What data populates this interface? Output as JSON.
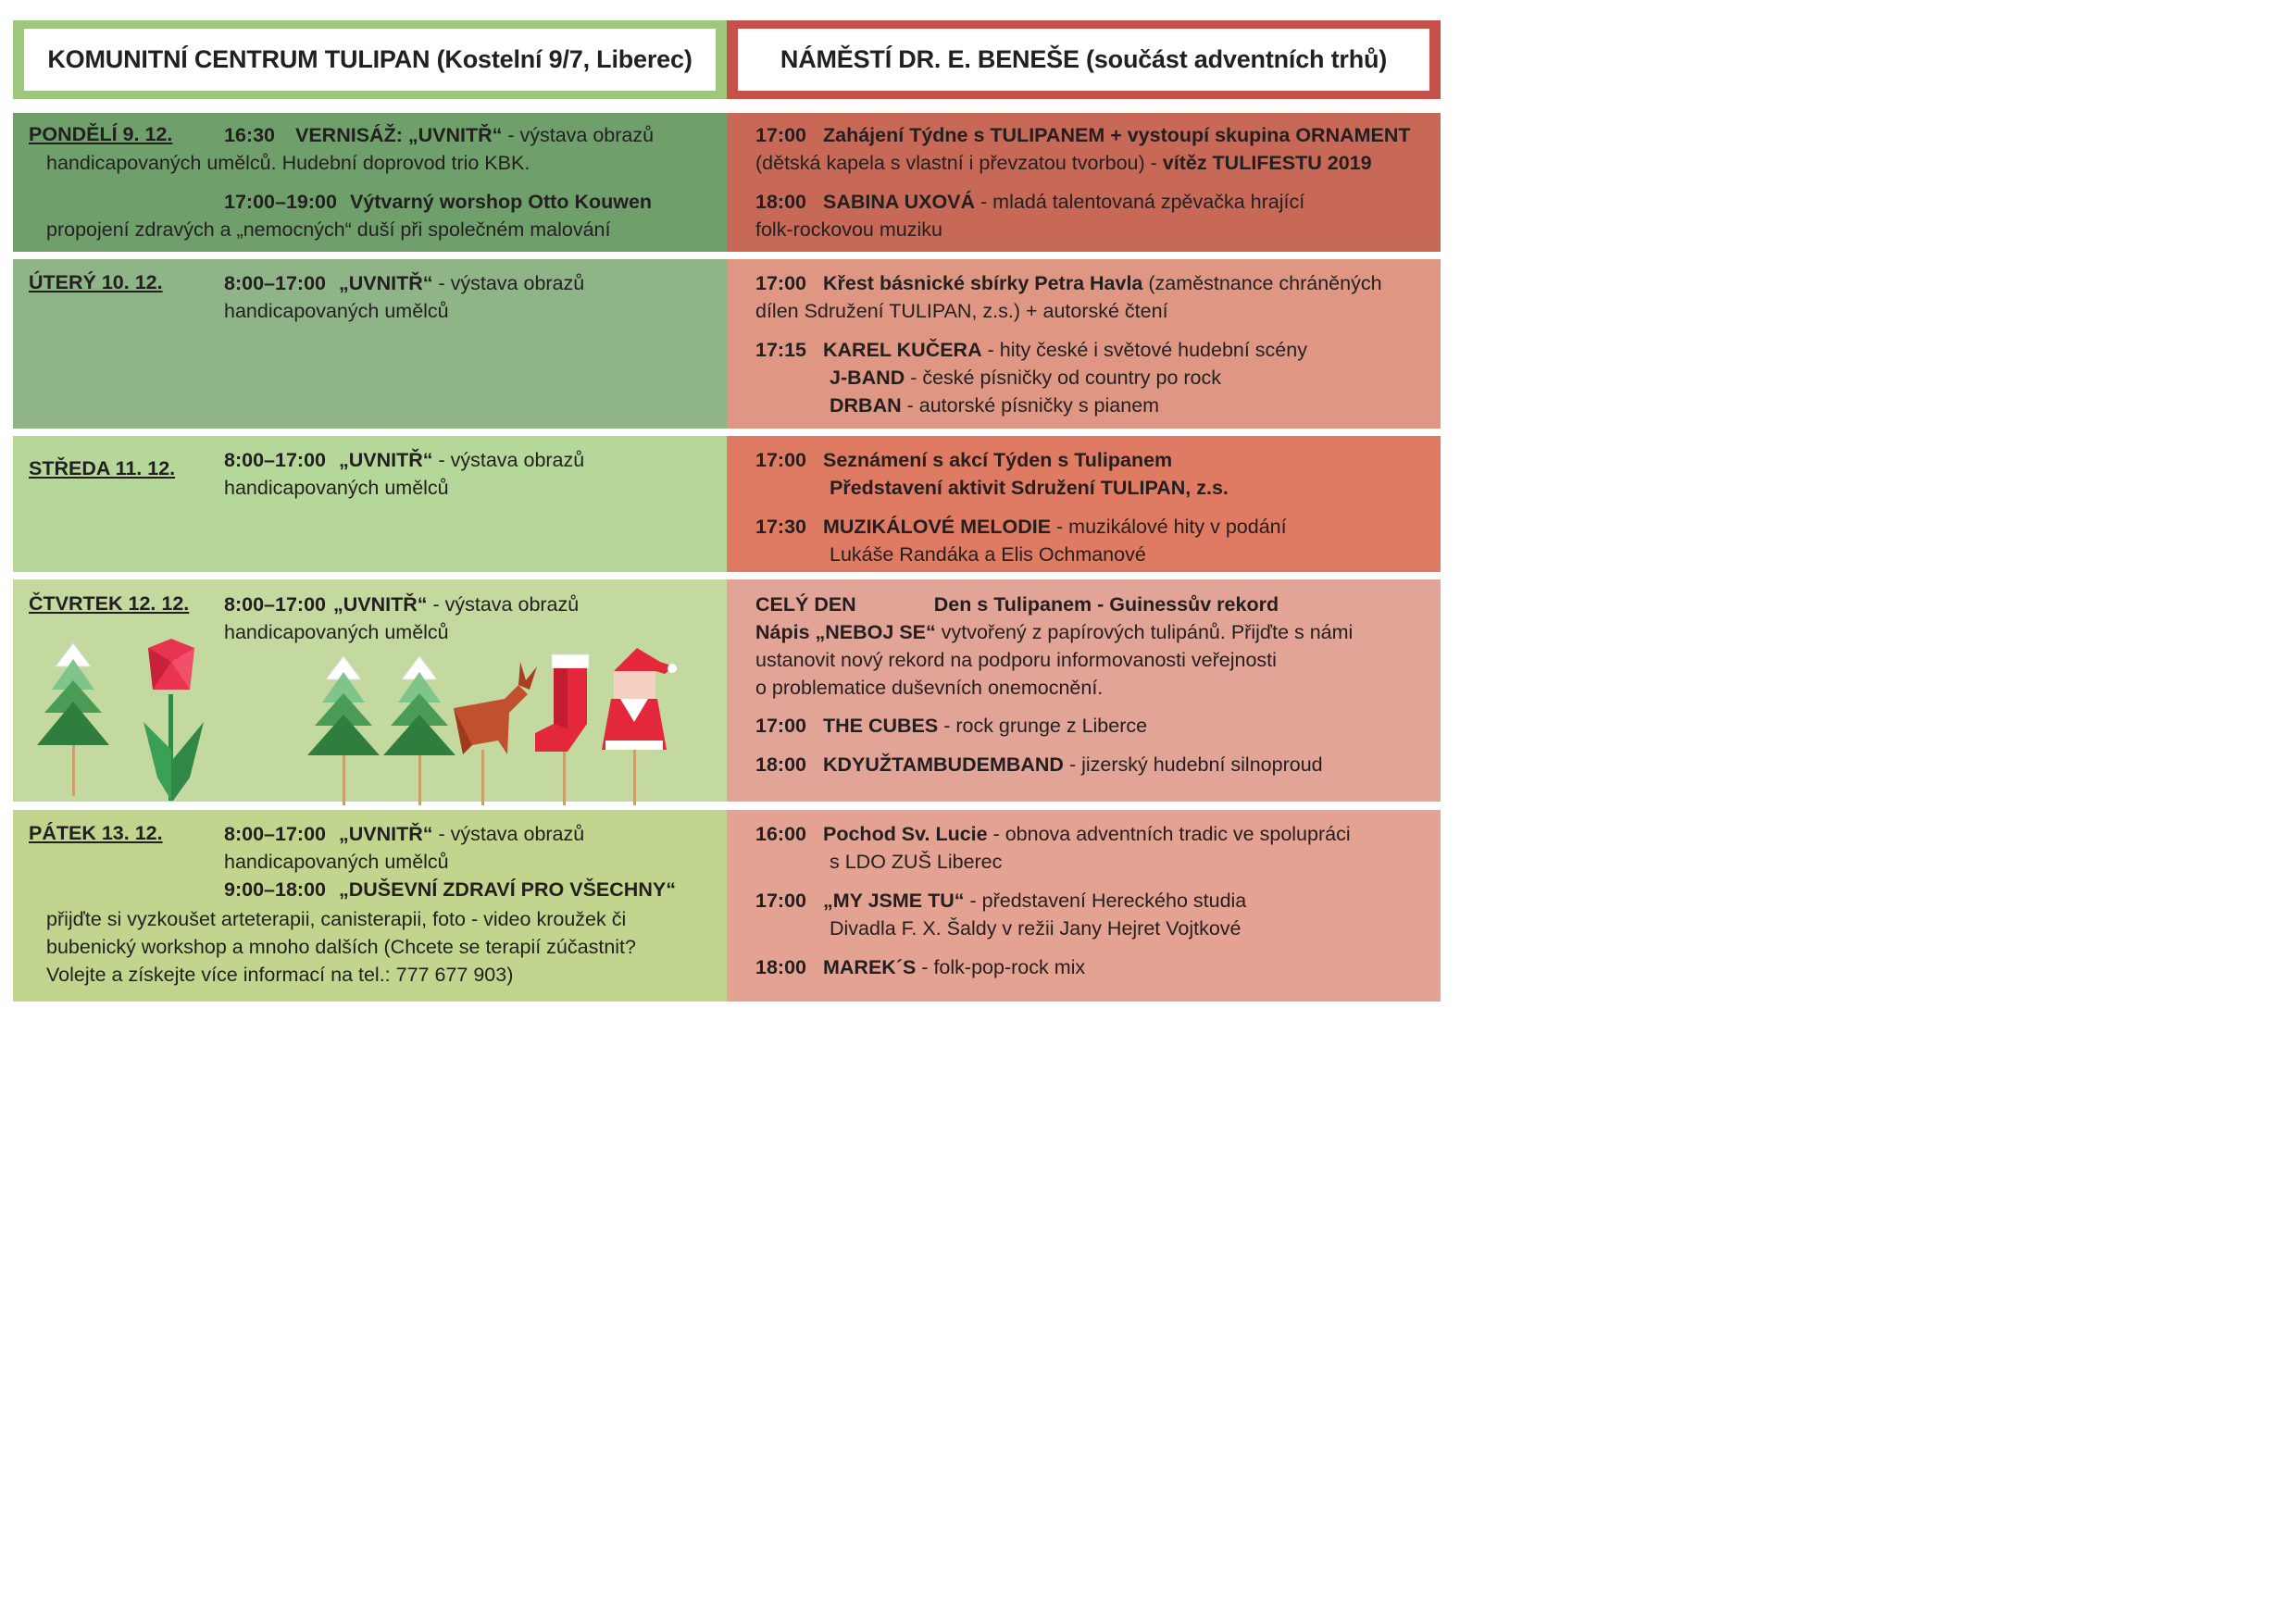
{
  "headers": {
    "left": "KOMUNITNÍ CENTRUM TULIPAN (Kostelní 9/7, Liberec)",
    "right": "NÁMĚSTÍ DR. E. BENEŠE (součást adventních trhů)"
  },
  "colors": {
    "left_header_border": "#9dc77a",
    "right_header_border": "#c6504a",
    "row1_left": "#6fa06b",
    "row1_right": "#c86856",
    "row2_left": "#8fb487",
    "row2_right": "#df9783",
    "row3_left": "#b6d79a",
    "row3_right": "#df7b62",
    "row4_left": "#c3d9a0",
    "row4_right": "#e2a497",
    "row5_left": "#c1d58e",
    "row5_right": "#e4a292"
  },
  "days": {
    "mon": {
      "day": "PONDĚLÍ 9. 12.",
      "left": {
        "t1": "16:30",
        "t1_title": "VERNISÁŽ: „UVNITŘ“",
        "t1_rest": " - výstava obrazů",
        "t1_line2": "handicapovaných umělců. Hudební doprovod trio KBK.",
        "t2": "17:00–19:00",
        "t2_title": "Výtvarný worshop Otto Kouwen",
        "t2_line2": "propojení zdravých a „nemocných“ duší při společném malování"
      },
      "right": {
        "e1_time": "17:00",
        "e1_title": "Zahájení Týdne s TULIPANEM + vystoupí skupina ORNAMENT",
        "e1_line2": "(dětská kapela s vlastní i převzatou tvorbou) - ",
        "e1_line2_bold": "vítěz TULIFESTU 2019",
        "e2_time": "18:00",
        "e2_title": "SABINA UXOVÁ",
        "e2_rest": " - mladá talentovaná zpěvačka hrající",
        "e2_line2": "folk-rockovou muziku"
      }
    },
    "tue": {
      "day": "ÚTERÝ 10. 12.",
      "left": {
        "t1": "8:00–17:00",
        "t1_title": "„UVNITŘ“",
        "t1_rest": " - výstava obrazů",
        "t1_line2": "handicapovaných umělců"
      },
      "right": {
        "e1_time": "17:00",
        "e1_title": "Křest básnické sbírky Petra Havla",
        "e1_rest": " (zaměstnance chráněných",
        "e1_line2": "dílen Sdružení TULIPAN, z.s.) + autorské čtení",
        "e2_time": "17:15",
        "e2_title": "KAREL KUČERA",
        "e2_rest": " - hity české i světové hudební scény",
        "e3_title": "J-BAND",
        "e3_rest": " - české písničky od country po rock",
        "e4_title": "DRBAN",
        "e4_rest": " - autorské písničky s pianem"
      }
    },
    "wed": {
      "day": "STŘEDA 11. 12.",
      "left": {
        "t1": "8:00–17:00",
        "t1_title": "„UVNITŘ“",
        "t1_rest": " - výstava obrazů",
        "t1_line2": "handicapovaných umělců"
      },
      "right": {
        "e1_time": "17:00",
        "e1_title": "Seznámení s akcí Týden s Tulipanem",
        "e1_line2": "Představení aktivit Sdružení TULIPAN, z.s.",
        "e2_time": "17:30",
        "e2_title": "MUZIKÁLOVÉ MELODIE",
        "e2_rest": " - muzikálové hity v podání",
        "e2_line2": "Lukáše Randáka a Elis Ochmanové"
      }
    },
    "thu": {
      "day": "ČTVRTEK 12. 12.",
      "left": {
        "t1": "8:00–17:00",
        "t1_title": "„UVNITŘ“",
        "t1_rest": " - výstava obrazů",
        "t1_line2": "handicapovaných umělců"
      },
      "right": {
        "e1_time": "CELÝ DEN",
        "e1_title": "Den s Tulipanem - Guinessův rekord",
        "e1_line2_bold": "Nápis „NEBOJ SE“",
        "e1_line2": " vytvořený z papírových tulipánů. Přijďte s námi",
        "e1_line3": "ustanovit nový rekord na podporu informovanosti veřejnosti",
        "e1_line4": "o problematice duševních onemocnění.",
        "e2_time": "17:00",
        "e2_title": "THE CUBES",
        "e2_rest": " - rock grunge z Liberce",
        "e3_time": "18:00",
        "e3_title": "KDYUŽTAMBUDEMBAND",
        "e3_rest": " - jizerský hudební silnoproud"
      }
    },
    "fri": {
      "day": "PÁTEK 13. 12.",
      "left": {
        "t1": "8:00–17:00",
        "t1_title": "„UVNITŘ“",
        "t1_rest": " - výstava obrazů",
        "t1_line2": "handicapovaných umělců",
        "t2": "9:00–18:00",
        "t2_title": "„DUŠEVNÍ ZDRAVÍ PRO VŠECHNY“",
        "t2_line2": "přijďte si vyzkoušet arteterapii, canisterapii, foto - video kroužek či",
        "t2_line3": "bubenický workshop a mnoho dalších (Chcete se terapií zúčastnit?",
        "t2_line4": "Volejte a získejte více informací na tel.: 777 677 903)"
      },
      "right": {
        "e1_time": "16:00",
        "e1_title": "Pochod Sv. Lucie",
        "e1_rest": " - obnova adventních tradic ve spolupráci",
        "e1_line2": "s LDO ZUŠ Liberec",
        "e2_time": "17:00",
        "e2_title": "„MY JSME TU“",
        "e2_rest": " - představení Hereckého studia",
        "e2_line2": "Divadla F. X. Šaldy v režii Jany Hejret Vojtkové",
        "e3_time": "18:00",
        "e3_title": "MAREK´S",
        "e3_rest": " - folk-pop-rock mix"
      }
    }
  },
  "illustration": {
    "icons": [
      "origami-tree-icon",
      "origami-tulip-icon",
      "origami-tree-icon",
      "origami-tree-icon",
      "origami-deer-icon",
      "origami-stocking-icon",
      "origami-santa-icon"
    ]
  }
}
